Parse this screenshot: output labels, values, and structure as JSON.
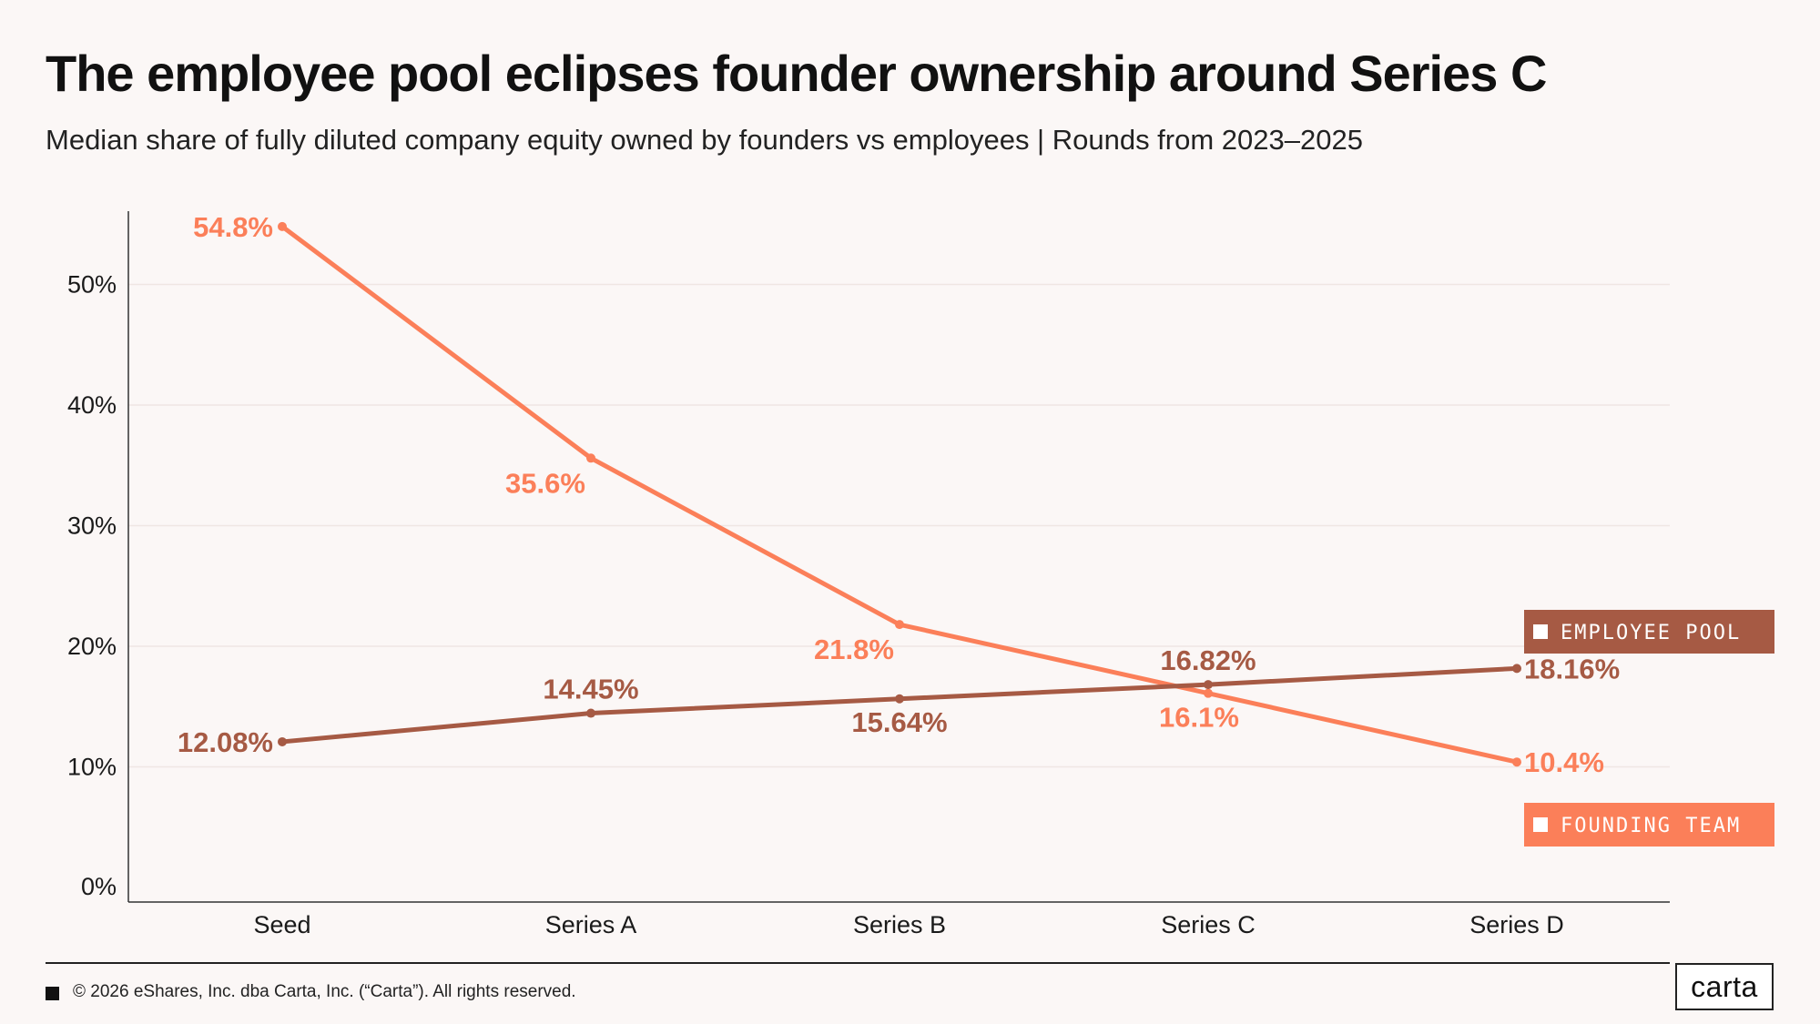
{
  "title": "The employee pool eclipses founder ownership around Series C",
  "subtitle": "Median share of fully diluted company equity owned by founders vs employees | Rounds from 2023–2025",
  "footer": {
    "copyright": "© 2026 eShares, Inc. dba Carta, Inc. (“Carta”). All rights reserved.",
    "logo": "carta"
  },
  "chart_data": {
    "type": "line",
    "title": "The employee pool eclipses founder ownership around Series C",
    "subtitle": "Median share of fully diluted company equity owned by founders vs employees | Rounds from 2023–2025",
    "xlabel": "",
    "ylabel": "",
    "categories": [
      "Seed",
      "Series A",
      "Series B",
      "Series C",
      "Series D"
    ],
    "ylim": [
      0,
      57
    ],
    "yticks": [
      {
        "value": 0,
        "label": "0%"
      },
      {
        "value": 10,
        "label": "10%"
      },
      {
        "value": 20,
        "label": "20%"
      },
      {
        "value": 30,
        "label": "30%"
      },
      {
        "value": 40,
        "label": "40%"
      },
      {
        "value": 50,
        "label": "50%"
      }
    ],
    "grid": true,
    "series": [
      {
        "name": "FOUNDING TEAM",
        "color": "#fb7f59",
        "values": [
          54.8,
          35.6,
          21.8,
          16.1,
          10.4
        ],
        "labels": [
          "54.8%",
          "35.6%",
          "21.8%",
          "16.1%",
          "10.4%"
        ],
        "label_pos": [
          "left",
          "below",
          "below",
          "below",
          "right"
        ]
      },
      {
        "name": "EMPLOYEE POOL",
        "color": "#a65a44",
        "values": [
          12.08,
          14.45,
          15.64,
          16.82,
          18.16
        ],
        "labels": [
          "12.08%",
          "14.45%",
          "15.64%",
          "16.82%",
          "18.16%"
        ],
        "label_pos": [
          "left",
          "above",
          "below",
          "above",
          "right"
        ]
      }
    ],
    "legend": [
      {
        "label": "EMPLOYEE POOL",
        "color": "#a65a44"
      },
      {
        "label": "FOUNDING TEAM",
        "color": "#fb7f59"
      }
    ]
  }
}
